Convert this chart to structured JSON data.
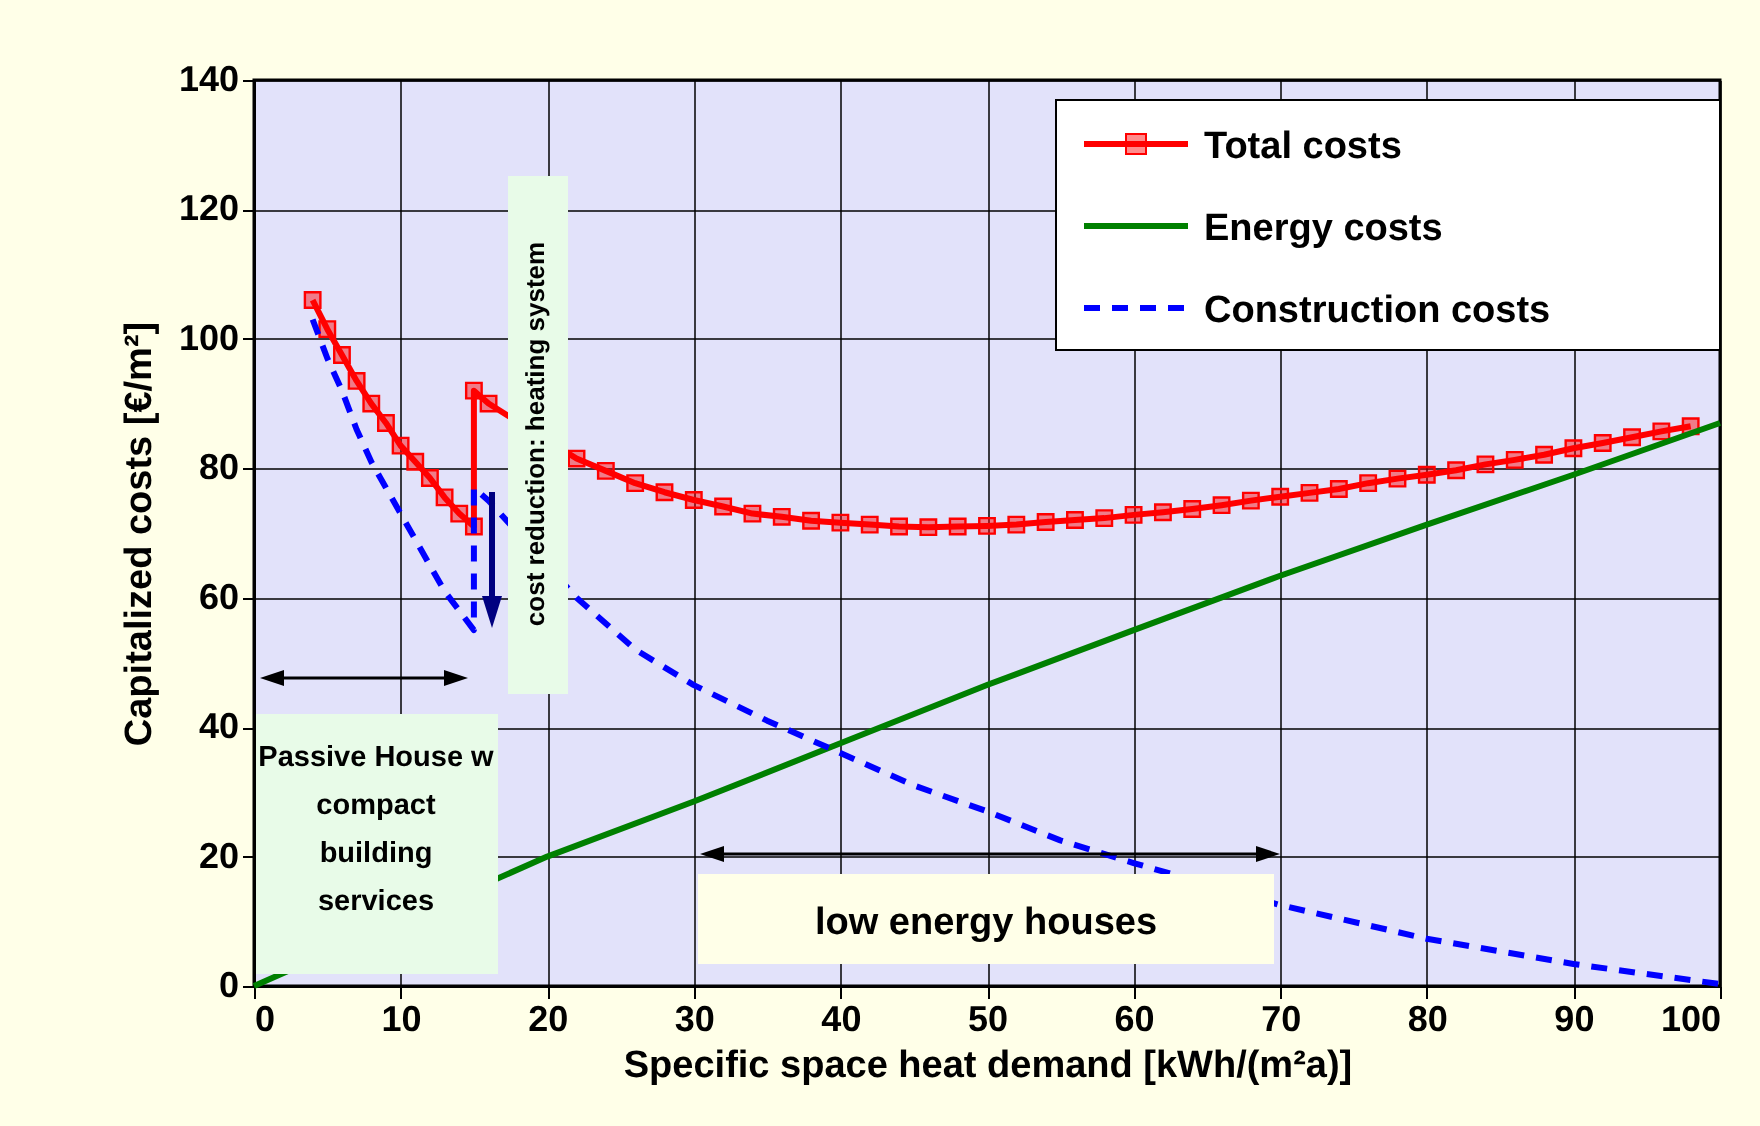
{
  "chart_data": {
    "type": "line",
    "xlabel": "Specific space  heat demand [kWh/(m²a)]",
    "ylabel": "Capitalized costs [€/m²]",
    "xlim": [
      0,
      100
    ],
    "ylim": [
      0,
      140
    ],
    "xticks": [
      0,
      10,
      20,
      30,
      40,
      50,
      60,
      70,
      80,
      90,
      100
    ],
    "yticks": [
      0,
      20,
      40,
      60,
      80,
      100,
      120,
      140
    ],
    "grid": true,
    "legend": "top right",
    "series": [
      {
        "name": "Total costs",
        "color": "#ff0000",
        "marker": "square",
        "line_style": "solid",
        "x": [
          4,
          5,
          6,
          7,
          8,
          9,
          10,
          11,
          12,
          13,
          14,
          15,
          15,
          16,
          22,
          24,
          26,
          28,
          30,
          32,
          34,
          36,
          38,
          40,
          42,
          44,
          46,
          48,
          50,
          52,
          54,
          56,
          58,
          60,
          62,
          64,
          66,
          68,
          70,
          72,
          74,
          76,
          78,
          80,
          82,
          84,
          86,
          88,
          90,
          92,
          94,
          96,
          98
        ],
        "values": [
          106,
          101.5,
          97.5,
          93.5,
          90,
          87,
          83.5,
          81,
          78.5,
          75.5,
          73,
          71,
          92,
          90,
          81.5,
          79.6,
          77.7,
          76.3,
          75.1,
          74.1,
          73,
          72.5,
          71.9,
          71.6,
          71.3,
          71,
          70.9,
          71,
          71.1,
          71.3,
          71.7,
          72,
          72.3,
          72.8,
          73.2,
          73.7,
          74.3,
          75,
          75.6,
          76.2,
          76.8,
          77.7,
          78.4,
          79,
          79.7,
          80.6,
          81.3,
          82.1,
          83.1,
          83.9,
          84.8,
          85.7,
          86.5
        ]
      },
      {
        "name": "Energy costs",
        "color": "#008000",
        "marker": "none",
        "line_style": "solid",
        "x": [
          0,
          20,
          30,
          40,
          50,
          60,
          70,
          80,
          90,
          100
        ],
        "values": [
          0,
          20,
          28.5,
          37.5,
          46.5,
          55,
          63.4,
          71.3,
          79,
          87
        ]
      },
      {
        "name": "Construction costs",
        "color": "#0000ff",
        "marker": "none",
        "line_style": "dashed",
        "x": [
          4,
          5,
          6,
          7,
          8,
          9,
          10,
          11,
          12,
          13,
          14,
          15,
          15,
          16,
          22,
          26,
          30,
          35,
          40,
          45,
          50,
          55,
          60,
          70,
          80,
          90,
          100
        ],
        "values": [
          103,
          97,
          92,
          86,
          81,
          77,
          73,
          69,
          65,
          61,
          58,
          55,
          77,
          75,
          60,
          52,
          46.5,
          41,
          36,
          31,
          27,
          22.5,
          19,
          12.5,
          7.3,
          3.4,
          0.3
        ]
      }
    ],
    "annotations": [
      "cost reduction: heating system",
      "Passive House w\ncompact\nbuilding\nservices",
      "low energy houses"
    ]
  }
}
